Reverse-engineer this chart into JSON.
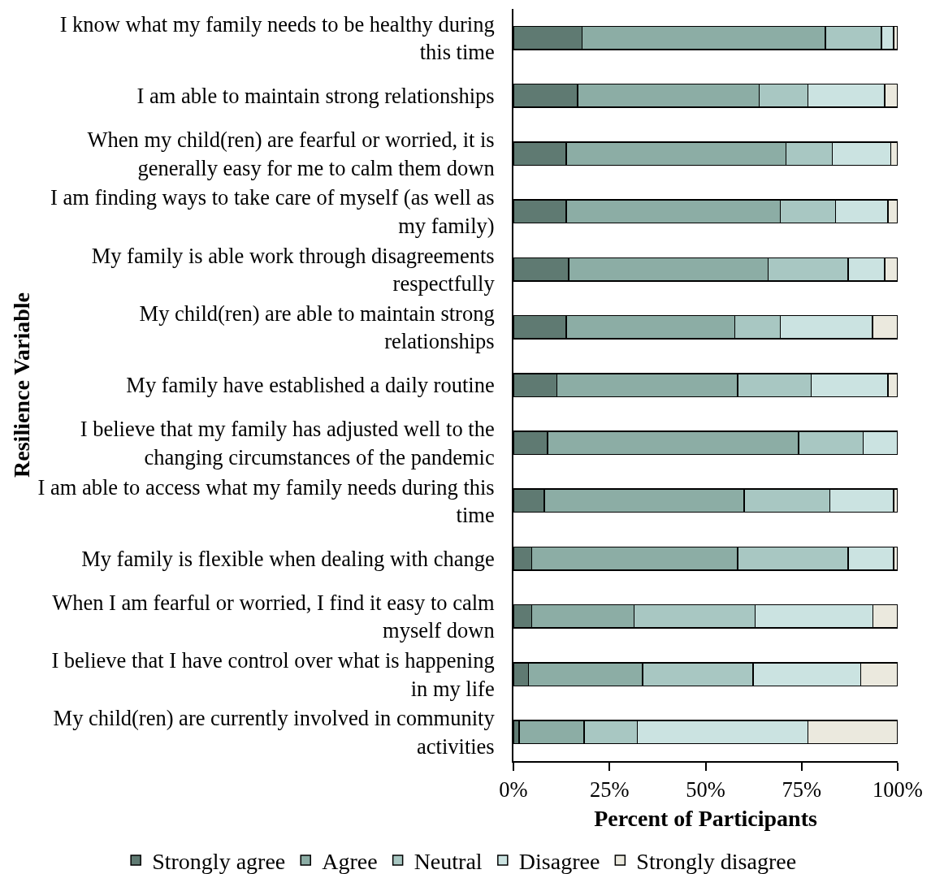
{
  "chart_data": {
    "type": "bar",
    "orientation": "horizontal",
    "stacked": true,
    "xlabel": "Percent of Participants",
    "ylabel": "Resilience Variable",
    "categories": [
      "I know what my family needs to be healthy during this time",
      "I am able to maintain strong relationships",
      "When my child(ren) are fearful or worried, it is generally easy for me to calm them down",
      "I am finding ways to take care of myself (as well as my family)",
      "My family is able work through disagreements respectfully",
      "My child(ren) are able to maintain strong relationships",
      "My family have established a daily routine",
      "I believe that my family has adjusted well to the changing circumstances of the pandemic",
      "I am able to access what my family needs during this time",
      "My family is flexible when dealing with change",
      "When I am fearful or worried, I find it easy to calm myself down",
      "I believe that I have control over what is happening in my life",
      "My child(ren) are currently involved in community activities"
    ],
    "series": [
      {
        "name": "Strongly agree",
        "color": "#5f7a72",
        "values": [
          17.9,
          16.7,
          13.7,
          13.7,
          14.4,
          13.7,
          11.3,
          8.9,
          8.0,
          4.8,
          4.8,
          3.9,
          1.5
        ]
      },
      {
        "name": "Agree",
        "color": "#8cada5",
        "values": [
          63.3,
          47.2,
          57.2,
          55.8,
          51.9,
          43.9,
          47.1,
          65.3,
          52.0,
          53.6,
          26.6,
          29.7,
          16.9
        ]
      },
      {
        "name": "Neutral",
        "color": "#a8c7c2",
        "values": [
          14.6,
          12.7,
          12.1,
          14.3,
          20.8,
          11.9,
          19.1,
          16.8,
          22.3,
          28.7,
          31.5,
          28.8,
          13.8
        ]
      },
      {
        "name": "Disagree",
        "color": "#cbe3e1",
        "values": [
          3.1,
          20.0,
          15.2,
          13.7,
          9.5,
          23.9,
          20.0,
          9.0,
          16.6,
          11.8,
          30.6,
          28.0,
          44.4
        ]
      },
      {
        "name": "Strongly disagree",
        "color": "#ebe9de",
        "values": [
          1.1,
          3.4,
          1.8,
          2.5,
          3.4,
          6.6,
          2.5,
          null,
          1.1,
          1.1,
          6.5,
          9.6,
          23.4
        ]
      }
    ],
    "xlim": [
      0,
      100
    ],
    "xticks": [
      {
        "value": 0,
        "label": "0%"
      },
      {
        "value": 25,
        "label": "25%"
      },
      {
        "value": 50,
        "label": "50%"
      },
      {
        "value": 75,
        "label": "75%"
      },
      {
        "value": 100,
        "label": "100%"
      }
    ],
    "grid": false,
    "legend": "bottom"
  }
}
